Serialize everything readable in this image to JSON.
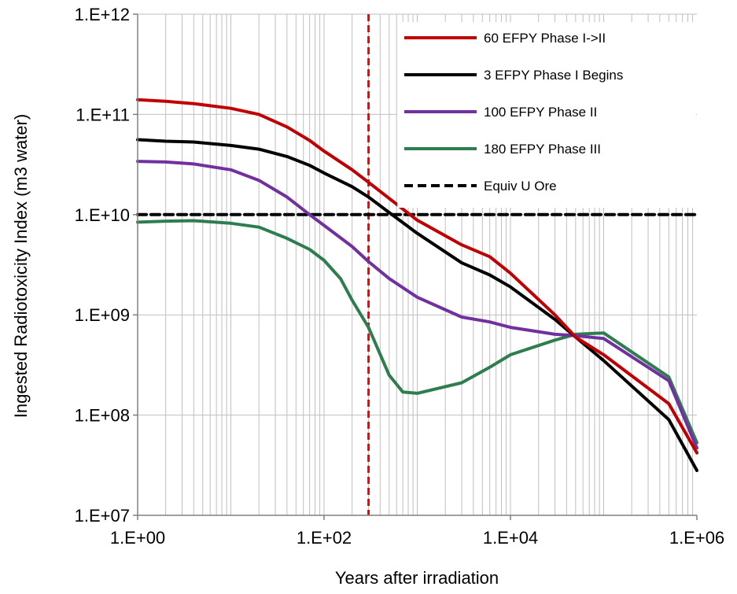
{
  "chart_data": {
    "type": "line",
    "title": "",
    "xlabel": "Years after irradiation",
    "ylabel": "Ingested Radiotoxicity Index (m3 water)",
    "x_scale": "log",
    "y_scale": "log",
    "xlim": [
      1,
      1000000
    ],
    "ylim": [
      10000000,
      1000000000000
    ],
    "grid": "major and minor vertical gridlines, major horizontal gridlines",
    "legend_position": "top-right",
    "x_ticks": [
      {
        "value": 1,
        "label": "1.E+00"
      },
      {
        "value": 100,
        "label": "1.E+02"
      },
      {
        "value": 10000,
        "label": "1.E+04"
      },
      {
        "value": 1000000,
        "label": "1.E+06"
      }
    ],
    "y_ticks": [
      {
        "value": 10000000,
        "label": "1.E+07"
      },
      {
        "value": 100000000,
        "label": "1.E+08"
      },
      {
        "value": 1000000000,
        "label": "1.E+09"
      },
      {
        "value": 10000000000,
        "label": "1.E+10"
      },
      {
        "value": 100000000000,
        "label": "1.E+11"
      },
      {
        "value": 1000000000000,
        "label": "1.E+12"
      }
    ],
    "series": [
      {
        "name": "60 EFPY Phase I->II",
        "color": "#c00000",
        "style": "solid",
        "x": [
          1,
          2,
          4,
          10,
          20,
          40,
          70,
          100,
          200,
          300,
          500,
          1000,
          3000,
          6000,
          10000,
          30000,
          50000,
          100000,
          500000,
          1000000
        ],
        "y": [
          140000000000,
          135000000000,
          128000000000,
          115000000000,
          100000000000,
          75000000000,
          55000000000,
          43000000000,
          28000000000,
          21000000000,
          14500000000,
          8800000000,
          5000000000,
          3800000000,
          2600000000,
          1000000000,
          600000000,
          400000000,
          130000000,
          42000000
        ]
      },
      {
        "name": "3 EFPY Phase I Begins",
        "color": "#000000",
        "style": "solid",
        "x": [
          1,
          2,
          4,
          10,
          20,
          40,
          70,
          100,
          200,
          300,
          500,
          1000,
          3000,
          6000,
          10000,
          30000,
          50000,
          100000,
          500000,
          1000000
        ],
        "y": [
          56000000000,
          54000000000,
          53000000000,
          49000000000,
          45000000000,
          38000000000,
          31000000000,
          26000000000,
          19000000000,
          15000000000,
          10500000000,
          6500000000,
          3300000000,
          2500000000,
          1900000000,
          900000000,
          600000000,
          350000000,
          90000000,
          28000000
        ]
      },
      {
        "name": "100 EFPY Phase II",
        "color": "#7030a0",
        "style": "solid",
        "x": [
          1,
          2,
          4,
          10,
          20,
          40,
          70,
          100,
          200,
          300,
          500,
          1000,
          3000,
          6000,
          10000,
          30000,
          50000,
          100000,
          500000,
          1000000
        ],
        "y": [
          34000000000,
          33500000000,
          32000000000,
          28000000000,
          22000000000,
          15000000000,
          10000000000,
          7800000000,
          4800000000,
          3400000000,
          2300000000,
          1500000000,
          950000000,
          850000000,
          750000000,
          640000000,
          620000000,
          580000000,
          220000000,
          47000000
        ]
      },
      {
        "name": "180 EFPY Phase III",
        "color": "#2e7d4f",
        "style": "solid",
        "x": [
          1,
          2,
          4,
          10,
          20,
          40,
          70,
          100,
          150,
          200,
          300,
          500,
          700,
          1000,
          3000,
          6000,
          10000,
          30000,
          50000,
          100000,
          500000,
          1000000
        ],
        "y": [
          8400000000,
          8600000000,
          8700000000,
          8200000000,
          7500000000,
          5800000000,
          4500000000,
          3500000000,
          2300000000,
          1400000000,
          750000000,
          250000000,
          170000000,
          165000000,
          210000000,
          300000000,
          400000000,
          560000000,
          640000000,
          660000000,
          240000000,
          53000000
        ]
      },
      {
        "name": "Equiv  U Ore",
        "color": "#000000",
        "style": "dashed",
        "x": [
          1,
          1000000
        ],
        "y": [
          10000000000,
          10000000000
        ]
      }
    ],
    "reference_lines": [
      {
        "orientation": "vertical",
        "x": 300,
        "color": "#ff0000",
        "style": "dashed"
      }
    ]
  }
}
